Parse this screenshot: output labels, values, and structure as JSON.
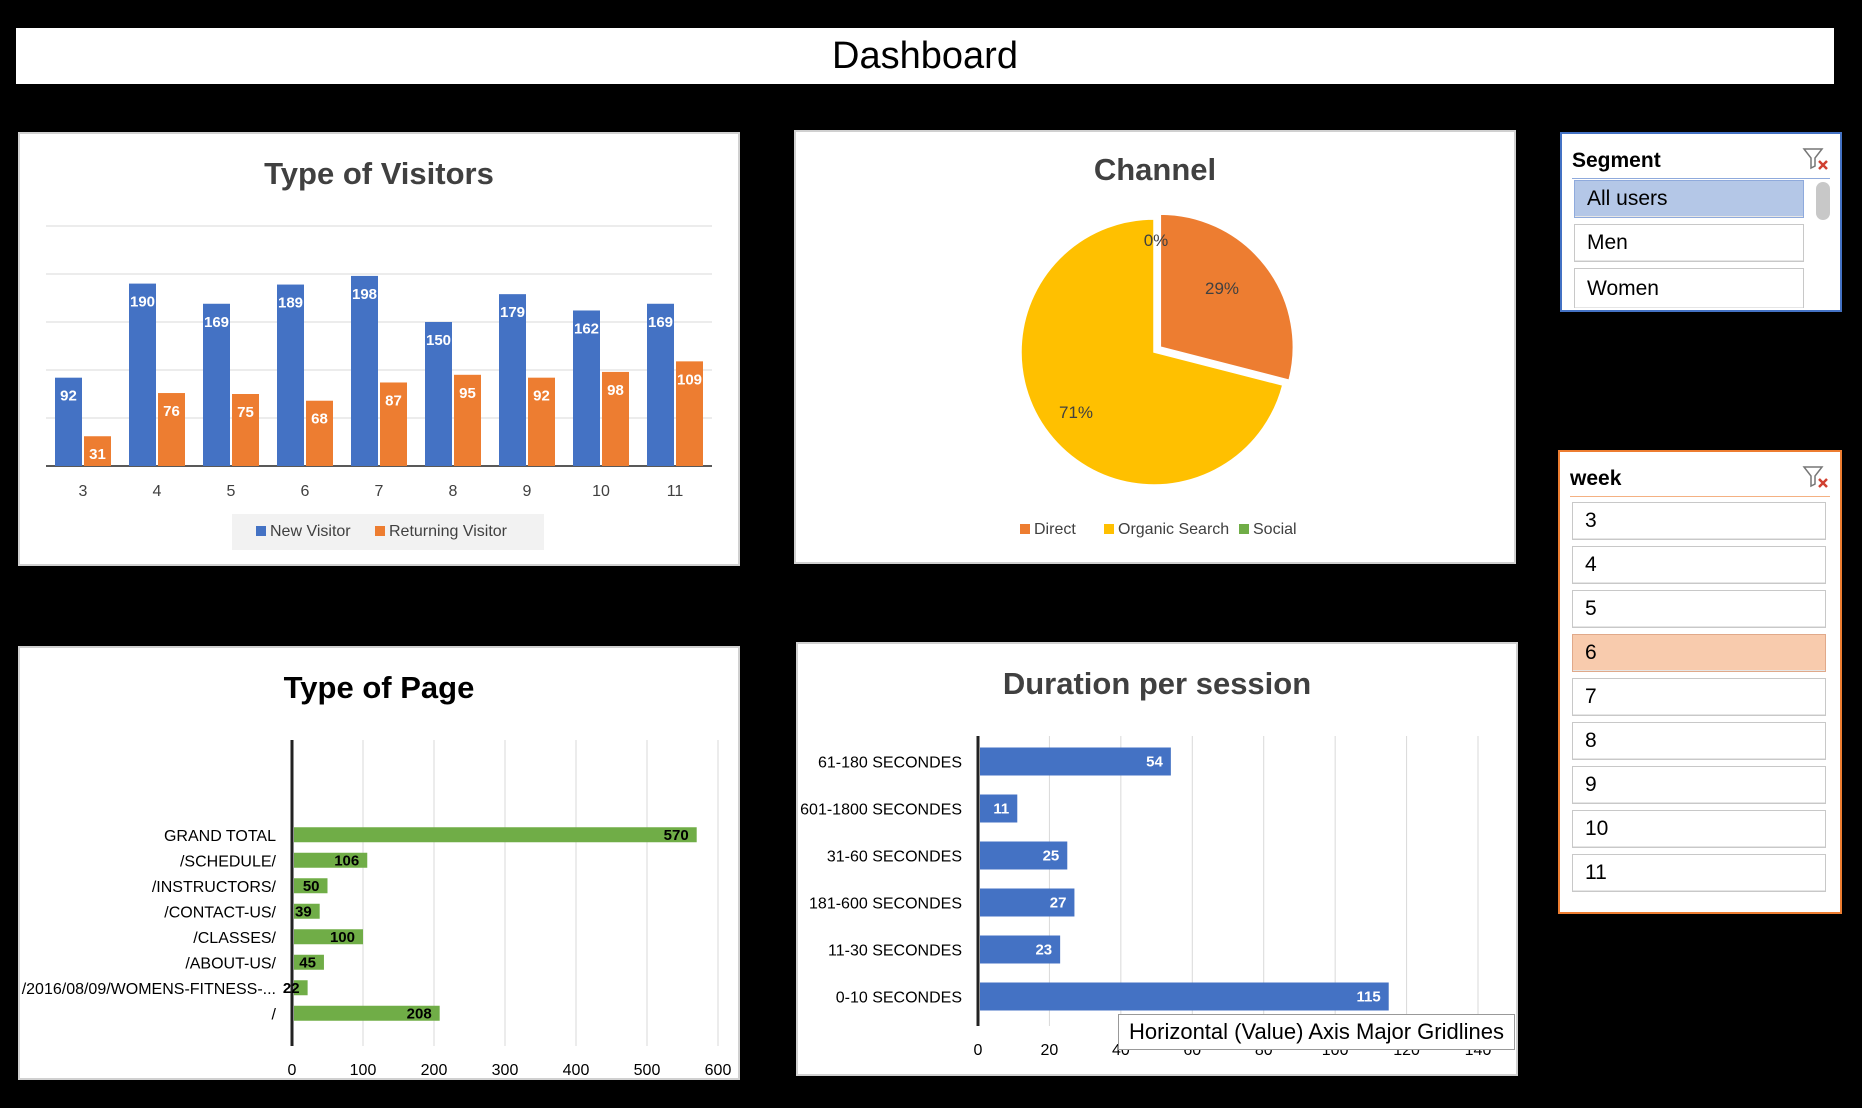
{
  "dashboard": {
    "title": "Dashboard"
  },
  "colors": {
    "new_visitor": "#4472C4",
    "returning_visitor": "#ED7D31",
    "direct": "#ED7D31",
    "organic": "#FFC000",
    "social": "#70AD47",
    "bar_green": "#70AD47",
    "bar_blue": "#4472C4",
    "segment_selected": "#B4C7E7",
    "week_selected": "#F8CBAD"
  },
  "visitors": {
    "chart_data": {
      "type": "bar",
      "title": "Type of Visitors",
      "categories": [
        "3",
        "4",
        "5",
        "6",
        "7",
        "8",
        "9",
        "10",
        "11"
      ],
      "series": [
        {
          "name": "New Visitor",
          "values": [
            92,
            190,
            169,
            189,
            198,
            150,
            179,
            162,
            169
          ]
        },
        {
          "name": "Returning Visitor",
          "values": [
            31,
            76,
            75,
            68,
            87,
            95,
            92,
            98,
            109
          ]
        }
      ],
      "ylim": [
        0,
        250
      ],
      "grid": true,
      "legend": "bottom"
    }
  },
  "channel": {
    "chart_data": {
      "type": "pie",
      "title": "Channel",
      "labels": [
        "Direct",
        "Organic Search",
        "Social"
      ],
      "values": [
        29,
        71,
        0
      ],
      "data_labels": [
        "29%",
        "71%",
        "0%"
      ],
      "legend": "bottom"
    }
  },
  "pages": {
    "chart_data": {
      "type": "bar",
      "orientation": "horizontal",
      "title": "Type of Page",
      "categories": [
        "GRAND TOTAL",
        "/SCHEDULE/",
        "/INSTRUCTORS/",
        "/CONTACT-US/",
        "/CLASSES/",
        "/ABOUT-US/",
        "/2016/08/09/WOMENS-FITNESS-...",
        "/"
      ],
      "values": [
        570,
        106,
        50,
        39,
        100,
        45,
        22,
        208
      ],
      "xticks": [
        "0",
        "100",
        "200",
        "300",
        "400",
        "500",
        "600"
      ],
      "xlim": [
        0,
        600
      ],
      "grid": true
    }
  },
  "duration": {
    "chart_data": {
      "type": "bar",
      "orientation": "horizontal",
      "title": "Duration per session",
      "categories": [
        "61-180 SECONDES",
        "601-1800 SECONDES",
        "31-60 SECONDES",
        "181-600 SECONDES",
        "11-30 SECONDES",
        "0-10 SECONDES"
      ],
      "values": [
        54,
        11,
        25,
        27,
        23,
        115
      ],
      "xticks": [
        "0",
        "20",
        "40",
        "60",
        "80",
        "100",
        "120",
        "140"
      ],
      "xlim": [
        0,
        140
      ],
      "grid": true
    },
    "tooltip": "Horizontal (Value) Axis Major Gridlines"
  },
  "segment_slicer": {
    "title": "Segment",
    "items": [
      "All users",
      "Men",
      "Women"
    ],
    "selected": "All users"
  },
  "week_slicer": {
    "title": "week",
    "items": [
      "3",
      "4",
      "5",
      "6",
      "7",
      "8",
      "9",
      "10",
      "11"
    ],
    "selected": "6"
  }
}
